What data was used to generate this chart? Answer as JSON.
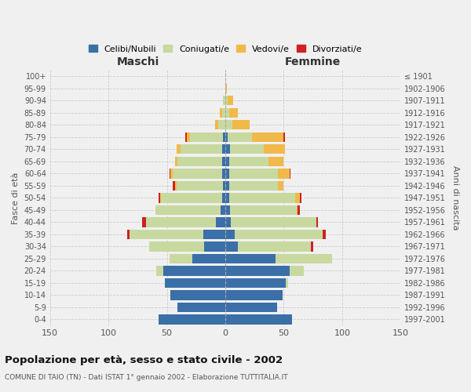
{
  "age_groups": [
    "0-4",
    "5-9",
    "10-14",
    "15-19",
    "20-24",
    "25-29",
    "30-34",
    "35-39",
    "40-44",
    "45-49",
    "50-54",
    "55-59",
    "60-64",
    "65-69",
    "70-74",
    "75-79",
    "80-84",
    "85-89",
    "90-94",
    "95-99",
    "100+"
  ],
  "birth_years": [
    "1997-2001",
    "1992-1996",
    "1987-1991",
    "1982-1986",
    "1977-1981",
    "1972-1976",
    "1967-1971",
    "1962-1966",
    "1957-1961",
    "1952-1956",
    "1947-1951",
    "1942-1946",
    "1937-1941",
    "1932-1936",
    "1927-1931",
    "1922-1926",
    "1917-1921",
    "1912-1916",
    "1907-1911",
    "1902-1906",
    "≤ 1901"
  ],
  "male": {
    "celibi": [
      57,
      41,
      47,
      52,
      53,
      28,
      18,
      19,
      8,
      4,
      3,
      2,
      3,
      3,
      3,
      2,
      0,
      0,
      0,
      0,
      0
    ],
    "coniugati": [
      0,
      0,
      0,
      0,
      6,
      20,
      47,
      63,
      60,
      56,
      52,
      40,
      42,
      38,
      35,
      28,
      6,
      3,
      2,
      0,
      0
    ],
    "vedovi": [
      0,
      0,
      0,
      0,
      0,
      0,
      0,
      0,
      0,
      0,
      1,
      1,
      2,
      2,
      4,
      3,
      3,
      2,
      0,
      0,
      0
    ],
    "divorziati": [
      0,
      0,
      0,
      0,
      0,
      0,
      0,
      2,
      3,
      0,
      1,
      2,
      1,
      0,
      0,
      1,
      0,
      0,
      0,
      0,
      0
    ]
  },
  "female": {
    "nubili": [
      57,
      44,
      49,
      52,
      55,
      43,
      11,
      8,
      5,
      4,
      3,
      3,
      3,
      3,
      4,
      2,
      0,
      0,
      0,
      0,
      0
    ],
    "coniugate": [
      0,
      0,
      0,
      2,
      12,
      48,
      62,
      75,
      73,
      57,
      57,
      42,
      42,
      34,
      29,
      21,
      6,
      3,
      2,
      0,
      0
    ],
    "vedove": [
      0,
      0,
      0,
      0,
      0,
      0,
      0,
      0,
      0,
      1,
      4,
      5,
      10,
      13,
      18,
      27,
      15,
      8,
      5,
      1,
      0
    ],
    "divorziate": [
      0,
      0,
      0,
      0,
      0,
      0,
      2,
      3,
      1,
      2,
      1,
      0,
      1,
      0,
      0,
      1,
      0,
      0,
      0,
      0,
      0
    ]
  },
  "colors": {
    "celibi_nubili": "#3a6fa8",
    "coniugati": "#c8d9a0",
    "vedovi": "#f0b94a",
    "divorziati": "#cc2222"
  },
  "title": "Popolazione per età, sesso e stato civile - 2002",
  "subtitle": "COMUNE DI TAIO (TN) - Dati ISTAT 1° gennaio 2002 - Elaborazione TUTTITALIA.IT",
  "xlabel_left": "Maschi",
  "xlabel_right": "Femmine",
  "ylabel_left": "Fasce di età",
  "ylabel_right": "Anni di nascita",
  "xlim": 150,
  "background_color": "#f0f0f0",
  "legend_labels": [
    "Celibi/Nubili",
    "Coniugati/e",
    "Vedovi/e",
    "Divorziati/e"
  ]
}
